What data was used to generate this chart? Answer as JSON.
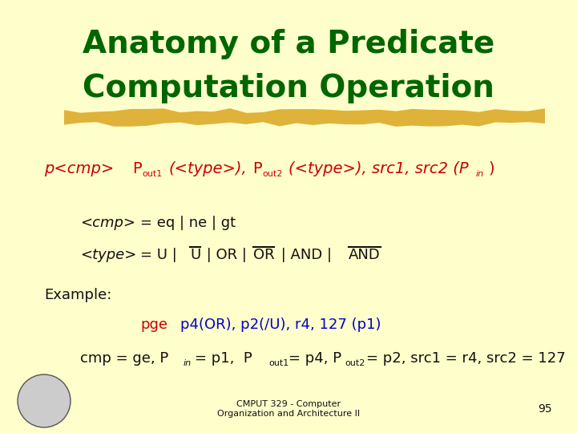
{
  "bg_color": "#FFFFCC",
  "title_line1": "Anatomy of a Predicate",
  "title_line2": "Computation Operation",
  "title_color": "#006600",
  "title_fontsize": 28,
  "brush_color": "#DAA520",
  "footer_text": "CMPUT 329 - Computer\nOrganization and Architecture II",
  "page_num": "95",
  "red": "#CC0000",
  "blue": "#0000CC",
  "black": "#111111"
}
